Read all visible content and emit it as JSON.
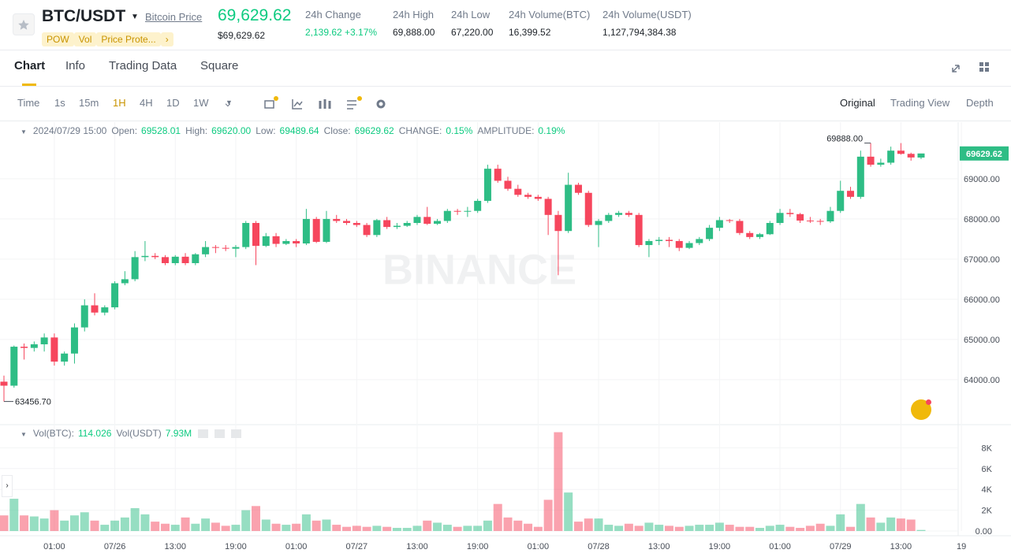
{
  "header": {
    "symbol": "BTC/USDT",
    "link": "Bitcoin Price",
    "price": "69,629.62",
    "price_usd": "$69,629.62",
    "tags": [
      "POW",
      "Vol",
      "Price Prote..."
    ],
    "stats": [
      {
        "label": "24h Change",
        "value": "2,139.62 +3.17%"
      },
      {
        "label": "24h High",
        "value": "69,888.00"
      },
      {
        "label": "24h Low",
        "value": "67,220.00"
      },
      {
        "label": "24h Volume(BTC)",
        "value": "16,399.52"
      },
      {
        "label": "24h Volume(USDT)",
        "value": "1,127,794,384.38"
      }
    ]
  },
  "tabs": [
    "Chart",
    "Info",
    "Trading Data",
    "Square"
  ],
  "toolbar": {
    "intervals": [
      "Time",
      "1s",
      "15m",
      "1H",
      "4H",
      "1D",
      "1W"
    ],
    "views": [
      "Original",
      "Trading View",
      "Depth"
    ]
  },
  "legend": {
    "time": "2024/07/29 15:00",
    "items": [
      {
        "label": "Open:",
        "value": "69528.01"
      },
      {
        "label": "High:",
        "value": "69620.00"
      },
      {
        "label": "Low:",
        "value": "69489.64"
      },
      {
        "label": "Close:",
        "value": "69629.62"
      },
      {
        "label": "CHANGE:",
        "value": "0.15%"
      },
      {
        "label": "AMPLITUDE:",
        "value": "0.19%"
      }
    ]
  },
  "watermark": "BINANCE",
  "chart_data": {
    "type": "candlestick",
    "candles": [
      [
        63950,
        64100,
        63456.7,
        63850
      ],
      [
        63850,
        64850,
        63800,
        64820
      ],
      [
        64820,
        64900,
        64500,
        64790
      ],
      [
        64790,
        64950,
        64700,
        64880
      ],
      [
        64880,
        65150,
        64700,
        65050
      ],
      [
        65050,
        65150,
        64350,
        64450
      ],
      [
        64450,
        64700,
        64350,
        64650
      ],
      [
        64650,
        65400,
        64400,
        65300
      ],
      [
        65300,
        66000,
        65200,
        65850
      ],
      [
        65850,
        66150,
        65600,
        65670
      ],
      [
        65670,
        65850,
        65600,
        65800
      ],
      [
        65800,
        66450,
        65750,
        66400
      ],
      [
        66400,
        66700,
        66350,
        66500
      ],
      [
        66500,
        67200,
        66450,
        67050
      ],
      [
        67050,
        67450,
        66950,
        67080
      ],
      [
        67080,
        67150,
        67000,
        67050
      ],
      [
        67050,
        67100,
        66850,
        66900
      ],
      [
        66900,
        67100,
        66850,
        67060
      ],
      [
        67060,
        67150,
        66850,
        66900
      ],
      [
        66900,
        67150,
        66850,
        67120
      ],
      [
        67120,
        67450,
        67050,
        67300
      ],
      [
        67300,
        67350,
        67150,
        67280
      ],
      [
        67280,
        67350,
        67200,
        67260
      ],
      [
        67260,
        67350,
        67050,
        67300
      ],
      [
        67300,
        67950,
        67250,
        67900
      ],
      [
        67900,
        67950,
        66850,
        67330
      ],
      [
        67330,
        67650,
        67300,
        67570
      ],
      [
        67570,
        67650,
        67300,
        67380
      ],
      [
        67380,
        67500,
        67350,
        67450
      ],
      [
        67450,
        67500,
        67300,
        67390
      ],
      [
        67390,
        68250,
        67350,
        68000
      ],
      [
        68000,
        68050,
        67400,
        67430
      ],
      [
        67430,
        68200,
        67400,
        68000
      ],
      [
        68000,
        68100,
        67900,
        67950
      ],
      [
        67950,
        68000,
        67850,
        67900
      ],
      [
        67900,
        67950,
        67800,
        67850
      ],
      [
        67850,
        67900,
        67550,
        67600
      ],
      [
        67600,
        68000,
        67550,
        67970
      ],
      [
        67970,
        68050,
        67750,
        67800
      ],
      [
        67800,
        67900,
        67750,
        67830
      ],
      [
        67830,
        67950,
        67800,
        67900
      ],
      [
        67900,
        68100,
        67850,
        68050
      ],
      [
        68050,
        68300,
        67850,
        67880
      ],
      [
        67880,
        68000,
        67850,
        67950
      ],
      [
        67950,
        68250,
        67900,
        68200
      ],
      [
        68200,
        68250,
        68100,
        68180
      ],
      [
        68180,
        68300,
        68050,
        68200
      ],
      [
        68200,
        68500,
        68150,
        68450
      ],
      [
        68450,
        69350,
        68400,
        69250
      ],
      [
        69250,
        69350,
        68900,
        68950
      ],
      [
        68950,
        69050,
        68700,
        68750
      ],
      [
        68750,
        68850,
        68550,
        68600
      ],
      [
        68600,
        68650,
        68500,
        68550
      ],
      [
        68550,
        68600,
        68450,
        68500
      ],
      [
        68500,
        68550,
        67600,
        68100
      ],
      [
        68100,
        68200,
        66600,
        67700
      ],
      [
        67700,
        69150,
        67650,
        68850
      ],
      [
        68850,
        68900,
        68600,
        68650
      ],
      [
        68650,
        68700,
        67800,
        67850
      ],
      [
        67850,
        68000,
        67300,
        67950
      ],
      [
        67950,
        68150,
        67900,
        68100
      ],
      [
        68100,
        68200,
        68050,
        68150
      ],
      [
        68150,
        68200,
        68050,
        68100
      ],
      [
        68100,
        68150,
        67300,
        67350
      ],
      [
        67350,
        67500,
        67050,
        67450
      ],
      [
        67450,
        67550,
        67350,
        67480
      ],
      [
        67480,
        67550,
        67300,
        67450
      ],
      [
        67450,
        67500,
        67200,
        67280
      ],
      [
        67280,
        67450,
        67250,
        67400
      ],
      [
        67400,
        67550,
        67350,
        67500
      ],
      [
        67500,
        67850,
        67450,
        67780
      ],
      [
        67780,
        68050,
        67700,
        67970
      ],
      [
        67970,
        68000,
        67900,
        67950
      ],
      [
        67950,
        68000,
        67600,
        67650
      ],
      [
        67650,
        67700,
        67500,
        67550
      ],
      [
        67550,
        67650,
        67500,
        67620
      ],
      [
        67620,
        67950,
        67600,
        67900
      ],
      [
        67900,
        68250,
        67850,
        68150
      ],
      [
        68150,
        68250,
        68050,
        68120
      ],
      [
        68120,
        68150,
        67900,
        67960
      ],
      [
        67960,
        68050,
        67900,
        67950
      ],
      [
        67950,
        68000,
        67850,
        67940
      ],
      [
        67940,
        68300,
        67900,
        68200
      ],
      [
        68200,
        68950,
        68150,
        68700
      ],
      [
        68700,
        68800,
        68500,
        68550
      ],
      [
        68550,
        69700,
        68500,
        69550
      ],
      [
        69550,
        69888,
        69300,
        69350
      ],
      [
        69350,
        69500,
        69300,
        69400
      ],
      [
        69400,
        69800,
        69350,
        69700
      ],
      [
        69700,
        69888,
        69600,
        69620
      ],
      [
        69620,
        69650,
        69450,
        69530
      ],
      [
        69528.01,
        69620,
        69489.64,
        69629.62
      ]
    ],
    "ylim": [
      62900,
      70410
    ],
    "yticks": [
      {
        "value": 64000,
        "label": "64000.00"
      },
      {
        "value": 65000,
        "label": "65000.00"
      },
      {
        "value": 66000,
        "label": "66000.00"
      },
      {
        "value": 67000,
        "label": "67000.00"
      },
      {
        "value": 68000,
        "label": "68000.00"
      },
      {
        "value": 69000,
        "label": "69000.00"
      }
    ],
    "annotations": [
      {
        "value": 69888,
        "label": "69888.00"
      },
      {
        "value": 63456.7,
        "label": "63456.70"
      }
    ],
    "up_color": "#2ebd85",
    "down_color": "#f6465d",
    "grid": true,
    "xlabels": [
      "01:00",
      "07/26",
      "13:00",
      "19:00",
      "01:00",
      "07/27",
      "13:00",
      "19:00",
      "01:00",
      "07/28",
      "13:00",
      "19:00",
      "01:00",
      "07/29",
      "13:00",
      "19"
    ],
    "volume": {
      "values": [
        1.5,
        3.1,
        1.5,
        1.4,
        1.2,
        2.0,
        1.0,
        1.5,
        1.8,
        1.0,
        0.6,
        1.0,
        1.3,
        2.2,
        1.6,
        0.9,
        0.7,
        0.6,
        1.3,
        0.7,
        1.2,
        0.8,
        0.5,
        0.6,
        2.0,
        2.4,
        1.1,
        0.7,
        0.6,
        0.7,
        1.6,
        1.0,
        1.1,
        0.6,
        0.4,
        0.5,
        0.4,
        0.5,
        0.4,
        0.3,
        0.3,
        0.5,
        1.0,
        0.8,
        0.6,
        0.4,
        0.5,
        0.5,
        1.0,
        2.6,
        1.3,
        1.0,
        0.7,
        0.4,
        3.0,
        9.5,
        3.7,
        0.9,
        1.2,
        1.2,
        0.6,
        0.5,
        0.7,
        0.5,
        0.8,
        0.6,
        0.5,
        0.4,
        0.5,
        0.6,
        0.6,
        0.8,
        0.6,
        0.4,
        0.4,
        0.3,
        0.5,
        0.6,
        0.4,
        0.3,
        0.5,
        0.7,
        0.5,
        1.6,
        0.4,
        2.6,
        1.3,
        0.8,
        1.3,
        1.2,
        1.1,
        0.1
      ],
      "ylim": [
        0,
        10.15
      ],
      "yticks": [
        {
          "value": 0,
          "label": "0.00"
        },
        {
          "value": 2,
          "label": "2K"
        },
        {
          "value": 4,
          "label": "4K"
        },
        {
          "value": 6,
          "label": "6K"
        },
        {
          "value": 8,
          "label": "8K"
        }
      ],
      "legend": [
        {
          "label": "Vol(BTC):",
          "value": "114.026"
        },
        {
          "label": "Vol(USDT)",
          "value": "7.93M"
        }
      ]
    }
  }
}
